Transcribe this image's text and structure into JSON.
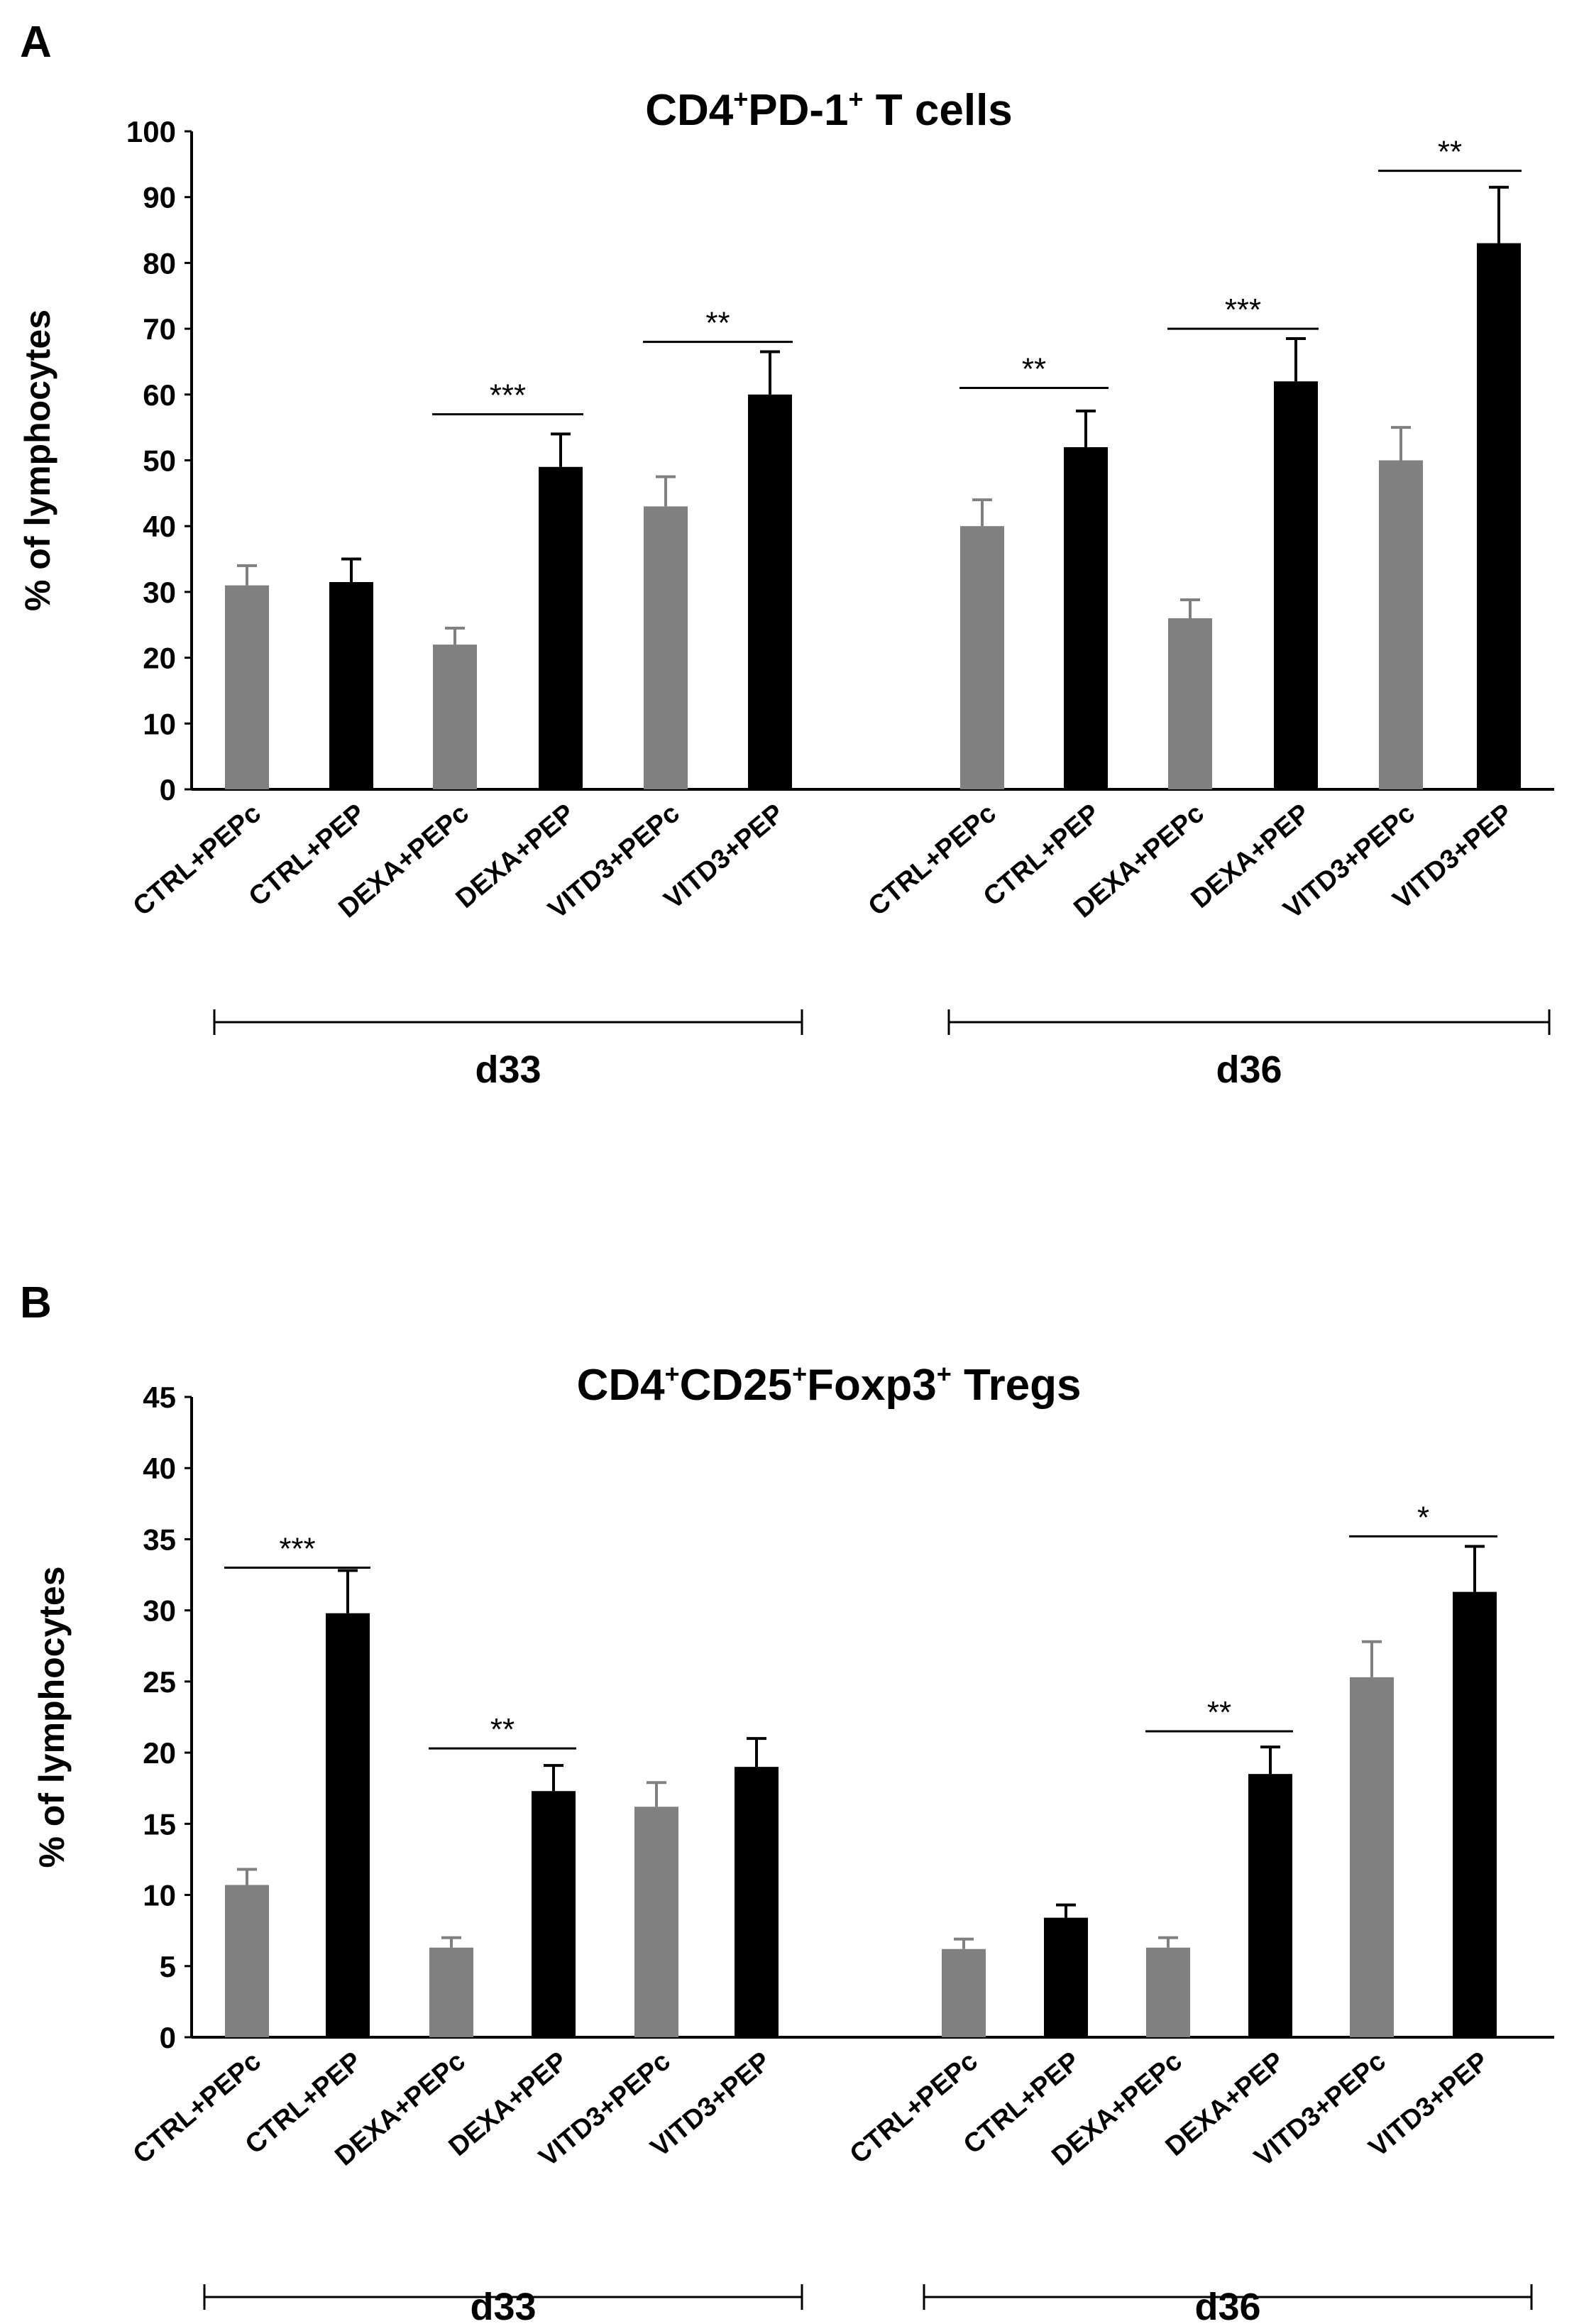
{
  "panels": [
    {
      "letter": "A"
    },
    {
      "letter": "B"
    }
  ],
  "chart_data": [
    {
      "type": "bar",
      "panel": "A",
      "title": {
        "base1": "CD4",
        "sup1": "+",
        "base2": "PD-1",
        "sup2": "+",
        "base3": " T cells"
      },
      "ylabel": "% of lymphocytes",
      "ylim": [
        0,
        100
      ],
      "yticks": [
        0,
        10,
        20,
        30,
        40,
        50,
        60,
        70,
        80,
        90,
        100
      ],
      "groups": [
        "d33",
        "d36"
      ],
      "categories": [
        "CTRL+PEPc",
        "CTRL+PEP",
        "DEXA+PEPc",
        "DEXA+PEP",
        "VITD3+PEPc",
        "VITD3+PEP",
        "CTRL+PEPc",
        "CTRL+PEP",
        "DEXA+PEPc",
        "DEXA+PEP",
        "VITD3+PEPc",
        "VITD3+PEP"
      ],
      "values": [
        31,
        31.5,
        22,
        49,
        43,
        60,
        40,
        52,
        26,
        62,
        50,
        83
      ],
      "errors": [
        3,
        3.5,
        2.5,
        5,
        4.5,
        6.5,
        4,
        5.5,
        2.8,
        6.5,
        5,
        8.5
      ],
      "bar_colors": [
        "#808080",
        "#000000",
        "#808080",
        "#000000",
        "#808080",
        "#000000",
        "#808080",
        "#000000",
        "#808080",
        "#000000",
        "#808080",
        "#000000"
      ],
      "significance": [
        {
          "from": 2,
          "to": 3,
          "label": "***",
          "y": 57
        },
        {
          "from": 4,
          "to": 5,
          "label": "**",
          "y": 68
        },
        {
          "from": 6,
          "to": 7,
          "label": "**",
          "y": 61
        },
        {
          "from": 8,
          "to": 9,
          "label": "***",
          "y": 70
        },
        {
          "from": 10,
          "to": 11,
          "label": "**",
          "y": 94
        }
      ]
    },
    {
      "type": "bar",
      "panel": "B",
      "title": {
        "base1": "CD4",
        "sup1": "+",
        "base2": "CD25",
        "sup2": "+",
        "base3": "Foxp3",
        "sup3": "+",
        "base4": " Tregs"
      },
      "ylabel": "% of lymphocytes",
      "ylim": [
        0,
        45
      ],
      "yticks": [
        0,
        5,
        10,
        15,
        20,
        25,
        30,
        35,
        40,
        45
      ],
      "groups": [
        "d33",
        "d36"
      ],
      "categories": [
        "CTRL+PEPc",
        "CTRL+PEP",
        "DEXA+PEPc",
        "DEXA+PEP",
        "VITD3+PEPc",
        "VITD3+PEP",
        "CTRL+PEPc",
        "CTRL+PEP",
        "DEXA+PEPc",
        "DEXA+PEP",
        "VITD3+PEPc",
        "VITD3+PEP"
      ],
      "values": [
        10.7,
        29.8,
        6.3,
        17.3,
        16.2,
        19,
        6.2,
        8.4,
        6.3,
        18.5,
        25.3,
        31.3
      ],
      "errors": [
        1.1,
        3,
        0.7,
        1.8,
        1.7,
        2,
        0.7,
        0.9,
        0.7,
        1.9,
        2.5,
        3.2
      ],
      "bar_colors": [
        "#808080",
        "#000000",
        "#808080",
        "#000000",
        "#808080",
        "#000000",
        "#808080",
        "#000000",
        "#808080",
        "#000000",
        "#808080",
        "#000000"
      ],
      "significance": [
        {
          "from": 0,
          "to": 1,
          "label": "***",
          "y": 33
        },
        {
          "from": 2,
          "to": 3,
          "label": "**",
          "y": 20.3
        },
        {
          "from": 8,
          "to": 9,
          "label": "**",
          "y": 21.5
        },
        {
          "from": 10,
          "to": 11,
          "label": "*",
          "y": 35.2
        }
      ]
    }
  ]
}
